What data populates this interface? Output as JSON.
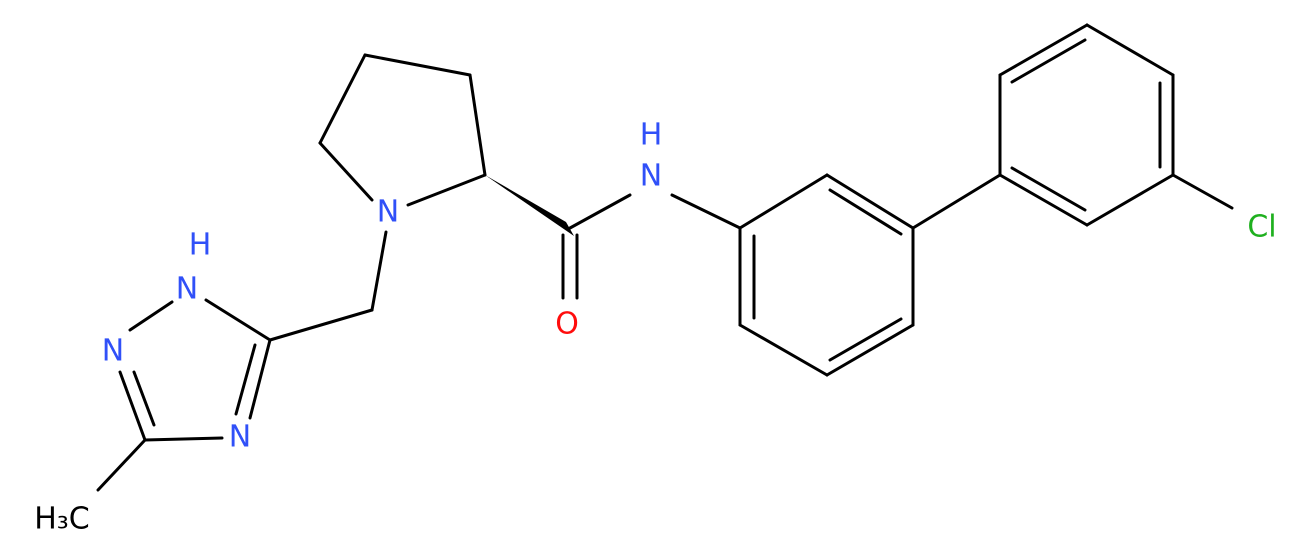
{
  "atoms": [
    {
      "label": "N"
    },
    {
      "label": "N"
    },
    {
      "label": "H"
    },
    {
      "label": "O"
    },
    {
      "label": "N"
    },
    {
      "label": "H"
    },
    {
      "label": "N"
    },
    {
      "label": "N"
    },
    {
      "label": "H₃C"
    },
    {
      "label": "Cl"
    }
  ]
}
